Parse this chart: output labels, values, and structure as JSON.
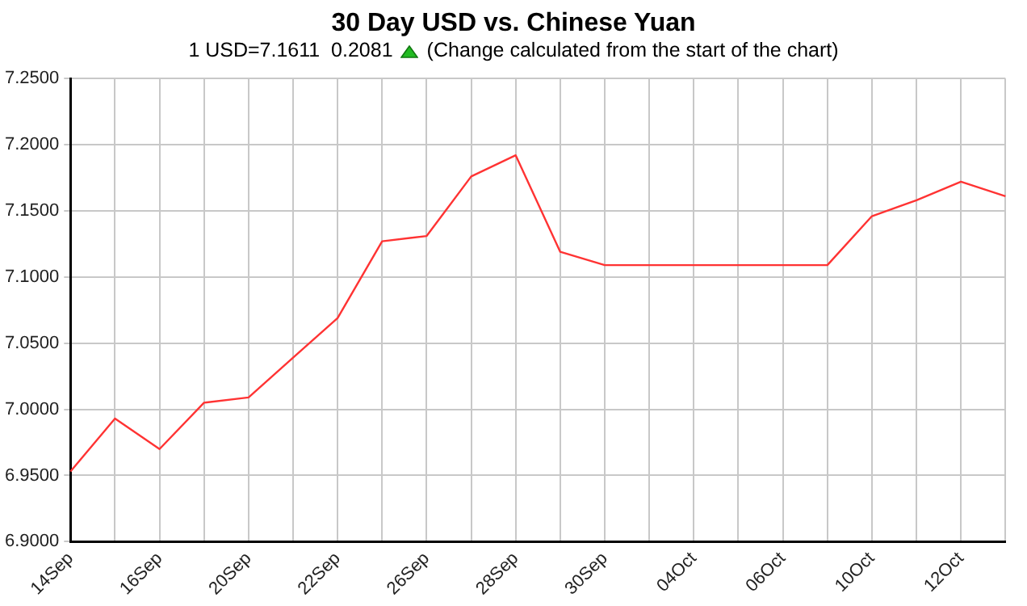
{
  "chart_data": {
    "type": "line",
    "title": "30 Day USD vs. Chinese Yuan",
    "subtitle": "1 USD=7.1611  0.2081",
    "annotations": [
      "(Change calculated from the start of the chart)"
    ],
    "categories": [
      "14Sep",
      null,
      "16Sep",
      null,
      "20Sep",
      null,
      "22Sep",
      null,
      "26Sep",
      null,
      "28Sep",
      null,
      "30Sep",
      null,
      "04Oct",
      null,
      "06Oct",
      null,
      "10Oct",
      null,
      "12Oct",
      null
    ],
    "series": [
      {
        "color": "#ff3333",
        "values": [
          6.953,
          6.993,
          6.97,
          7.005,
          7.009,
          7.039,
          7.069,
          7.127,
          7.131,
          7.176,
          7.192,
          7.119,
          7.109,
          7.109,
          7.109,
          7.109,
          7.109,
          7.109,
          7.146,
          7.158,
          7.172,
          7.161
        ]
      }
    ],
    "ylim": [
      6.9,
      7.25
    ],
    "yticks": [
      {
        "value": 6.9,
        "label": "6.9000"
      },
      {
        "value": 6.95,
        "label": "6.9500"
      },
      {
        "value": 7.0,
        "label": "7.0000"
      },
      {
        "value": 7.05,
        "label": "7.0500"
      },
      {
        "value": 7.1,
        "label": "7.1000"
      },
      {
        "value": 7.15,
        "label": "7.1500"
      },
      {
        "value": 7.2,
        "label": "7.2000"
      },
      {
        "value": 7.25,
        "label": "7.2500"
      }
    ],
    "grid": true,
    "marker": "none",
    "line_style": "solid",
    "legend": false
  }
}
